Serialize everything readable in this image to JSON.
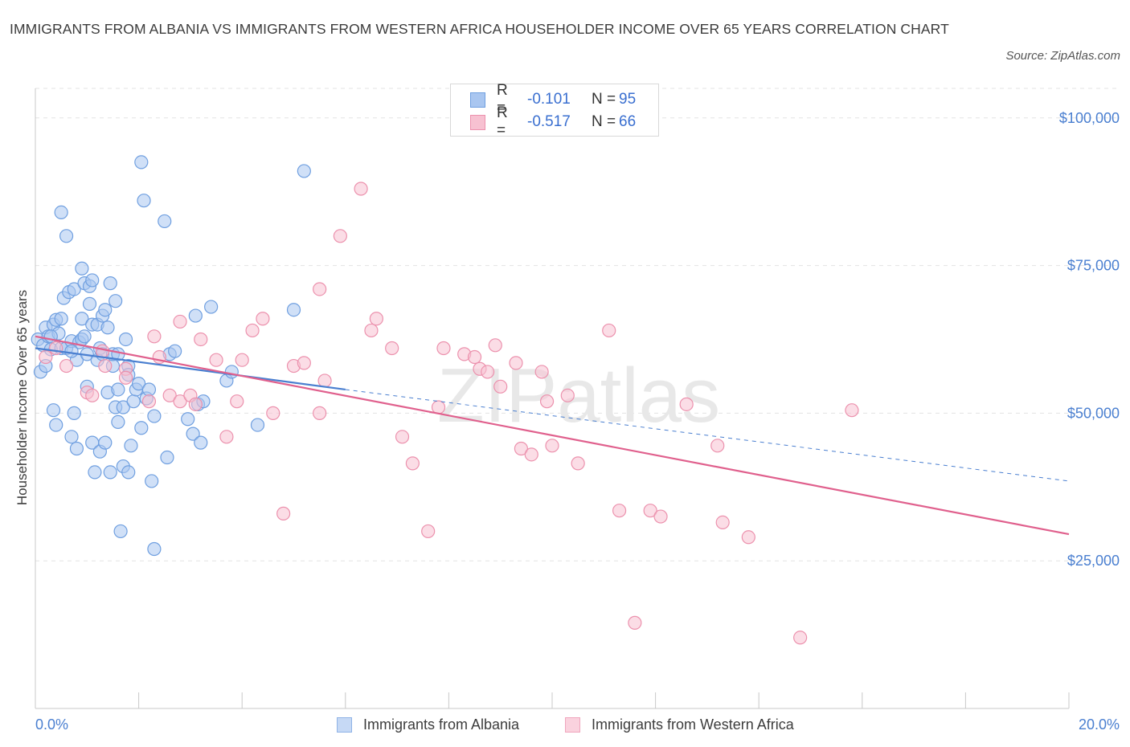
{
  "title": "IMMIGRANTS FROM ALBANIA VS IMMIGRANTS FROM WESTERN AFRICA HOUSEHOLDER INCOME OVER 65 YEARS CORRELATION CHART",
  "source": "Source: ZipAtlas.com",
  "watermark": "ZIPatlas",
  "legend": {
    "rows": [
      {
        "r_label": "R =",
        "r_value": "-0.101",
        "n_label": "N =",
        "n_value": "95",
        "color": "#a9c6f0",
        "stroke": "#6f9fe0"
      },
      {
        "r_label": "R =",
        "r_value": "-0.517",
        "n_label": "N =",
        "n_value": "66",
        "color": "#f7c1d1",
        "stroke": "#ec91ad"
      }
    ]
  },
  "bottom_legend": [
    "Immigrants from Albania",
    "Immigrants from Western Africa"
  ],
  "chart_data": {
    "type": "scatter",
    "xlabel": "",
    "ylabel": "Householder Income Over 65 years",
    "xlim": [
      0,
      20
    ],
    "ylim": [
      0,
      105000
    ],
    "x_tick_labels": [
      "0.0%",
      "20.0%"
    ],
    "y_ticks": [
      25000,
      50000,
      75000,
      100000
    ],
    "y_tick_labels": [
      "$25,000",
      "$50,000",
      "$75,000",
      "$100,000"
    ],
    "grid": true,
    "colors": {
      "albania": "#4a7fd0",
      "western_africa": "#e0608d",
      "tick": "#4a7fd0"
    },
    "series": [
      {
        "name": "Immigrants from Albania",
        "fill": "#a9c6f0",
        "stroke": "#6f9fe0",
        "trend": {
          "x": [
            0,
            6.0
          ],
          "y": [
            61000,
            54000
          ]
        },
        "trend_dashed": {
          "x": [
            6.0,
            20.0
          ],
          "y": [
            54000,
            38500
          ]
        },
        "points": [
          [
            0.05,
            62500
          ],
          [
            0.1,
            57000
          ],
          [
            0.15,
            61500
          ],
          [
            0.2,
            64500
          ],
          [
            0.25,
            63000
          ],
          [
            0.3,
            60800
          ],
          [
            0.35,
            65000
          ],
          [
            0.35,
            50500
          ],
          [
            0.4,
            48000
          ],
          [
            0.4,
            65800
          ],
          [
            0.45,
            63500
          ],
          [
            0.5,
            61000
          ],
          [
            0.5,
            84000
          ],
          [
            0.5,
            66000
          ],
          [
            0.55,
            69500
          ],
          [
            0.6,
            80000
          ],
          [
            0.6,
            61000
          ],
          [
            0.65,
            70500
          ],
          [
            0.7,
            46000
          ],
          [
            0.7,
            62200
          ],
          [
            0.75,
            71000
          ],
          [
            0.75,
            50000
          ],
          [
            0.8,
            44000
          ],
          [
            0.8,
            59000
          ],
          [
            0.85,
            62000
          ],
          [
            0.9,
            74500
          ],
          [
            0.9,
            62500
          ],
          [
            0.9,
            66000
          ],
          [
            0.95,
            63000
          ],
          [
            0.95,
            72000
          ],
          [
            1.0,
            54500
          ],
          [
            1.0,
            60000
          ],
          [
            1.05,
            68500
          ],
          [
            1.05,
            71500
          ],
          [
            1.1,
            65000
          ],
          [
            1.1,
            45000
          ],
          [
            1.1,
            72500
          ],
          [
            1.15,
            40000
          ],
          [
            1.2,
            59000
          ],
          [
            1.2,
            65000
          ],
          [
            1.25,
            43500
          ],
          [
            1.25,
            61000
          ],
          [
            1.3,
            66500
          ],
          [
            1.3,
            60000
          ],
          [
            1.35,
            67500
          ],
          [
            1.35,
            45000
          ],
          [
            1.4,
            53500
          ],
          [
            1.4,
            64500
          ],
          [
            1.45,
            72000
          ],
          [
            1.45,
            40000
          ],
          [
            1.5,
            58000
          ],
          [
            1.5,
            60000
          ],
          [
            1.55,
            51000
          ],
          [
            1.55,
            69000
          ],
          [
            1.6,
            48500
          ],
          [
            1.6,
            60000
          ],
          [
            1.6,
            54000
          ],
          [
            1.65,
            30000
          ],
          [
            1.7,
            41000
          ],
          [
            1.7,
            51000
          ],
          [
            1.75,
            62500
          ],
          [
            1.8,
            40000
          ],
          [
            1.8,
            58000
          ],
          [
            1.8,
            56500
          ],
          [
            1.85,
            44500
          ],
          [
            1.9,
            52000
          ],
          [
            1.95,
            54000
          ],
          [
            2.0,
            55000
          ],
          [
            2.05,
            47500
          ],
          [
            2.05,
            92500
          ],
          [
            2.1,
            86000
          ],
          [
            2.15,
            52500
          ],
          [
            2.2,
            54000
          ],
          [
            2.25,
            38500
          ],
          [
            2.3,
            49500
          ],
          [
            2.3,
            27000
          ],
          [
            2.5,
            82500
          ],
          [
            2.55,
            42500
          ],
          [
            2.6,
            60000
          ],
          [
            2.7,
            60500
          ],
          [
            2.95,
            49000
          ],
          [
            3.05,
            46500
          ],
          [
            3.1,
            66500
          ],
          [
            3.15,
            51500
          ],
          [
            3.2,
            45000
          ],
          [
            3.25,
            52000
          ],
          [
            3.4,
            68000
          ],
          [
            3.7,
            55500
          ],
          [
            3.8,
            57000
          ],
          [
            4.3,
            48000
          ],
          [
            5.0,
            67500
          ],
          [
            5.2,
            91000
          ],
          [
            0.2,
            58000
          ],
          [
            0.3,
            63000
          ],
          [
            0.7,
            60500
          ]
        ]
      },
      {
        "name": "Immigrants from Western Africa",
        "fill": "#f7c1d1",
        "stroke": "#ec91ad",
        "trend": {
          "x": [
            0,
            20.0
          ],
          "y": [
            63000,
            29500
          ]
        },
        "points": [
          [
            0.2,
            59500
          ],
          [
            0.6,
            58000
          ],
          [
            1.0,
            53500
          ],
          [
            1.1,
            53000
          ],
          [
            1.3,
            60500
          ],
          [
            1.35,
            58000
          ],
          [
            1.75,
            57500
          ],
          [
            1.75,
            56000
          ],
          [
            2.2,
            52000
          ],
          [
            2.3,
            63000
          ],
          [
            2.4,
            59500
          ],
          [
            2.6,
            53000
          ],
          [
            2.8,
            52000
          ],
          [
            2.8,
            65500
          ],
          [
            3.0,
            53000
          ],
          [
            3.1,
            51500
          ],
          [
            3.2,
            62500
          ],
          [
            3.5,
            59000
          ],
          [
            3.7,
            46000
          ],
          [
            3.9,
            52000
          ],
          [
            4.0,
            59000
          ],
          [
            4.2,
            64000
          ],
          [
            4.4,
            66000
          ],
          [
            4.6,
            50000
          ],
          [
            4.8,
            33000
          ],
          [
            5.0,
            58000
          ],
          [
            5.2,
            58500
          ],
          [
            5.5,
            50000
          ],
          [
            5.5,
            71000
          ],
          [
            5.6,
            55500
          ],
          [
            5.9,
            80000
          ],
          [
            6.3,
            88000
          ],
          [
            6.5,
            64000
          ],
          [
            6.6,
            66000
          ],
          [
            6.9,
            61000
          ],
          [
            7.1,
            46000
          ],
          [
            7.3,
            41500
          ],
          [
            7.6,
            30000
          ],
          [
            7.8,
            51000
          ],
          [
            7.9,
            61000
          ],
          [
            8.3,
            60000
          ],
          [
            8.5,
            59500
          ],
          [
            8.6,
            57500
          ],
          [
            8.75,
            57000
          ],
          [
            8.9,
            61500
          ],
          [
            9.0,
            54500
          ],
          [
            9.3,
            58500
          ],
          [
            9.4,
            44000
          ],
          [
            9.6,
            43000
          ],
          [
            9.8,
            57000
          ],
          [
            10.0,
            44500
          ],
          [
            10.3,
            53000
          ],
          [
            10.5,
            41500
          ],
          [
            11.1,
            64000
          ],
          [
            11.3,
            33500
          ],
          [
            11.6,
            14500
          ],
          [
            11.9,
            33500
          ],
          [
            12.1,
            32500
          ],
          [
            12.6,
            51500
          ],
          [
            13.2,
            44500
          ],
          [
            13.3,
            31500
          ],
          [
            13.8,
            29000
          ],
          [
            14.8,
            12000
          ],
          [
            15.8,
            50500
          ],
          [
            0.4,
            61000
          ],
          [
            9.9,
            52000
          ]
        ]
      }
    ]
  }
}
